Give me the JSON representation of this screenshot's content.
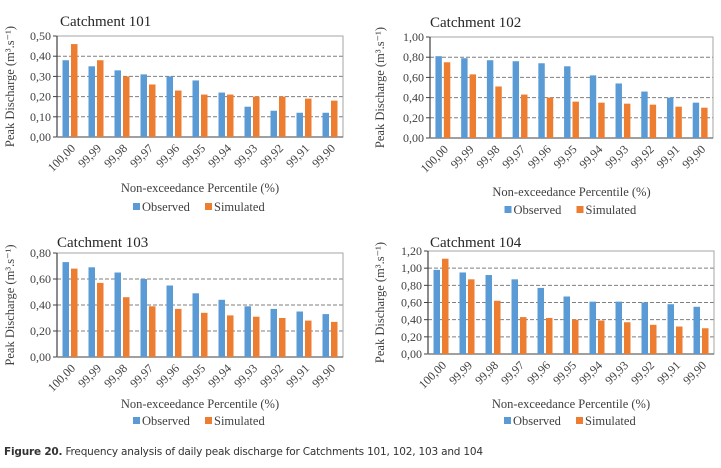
{
  "caption": {
    "label": "Figure 20.",
    "text": " Frequency analysis of daily peak discharge for Catchments 101, 102, 103 and 104"
  },
  "colors": {
    "observed": "#5B9BD5",
    "simulated": "#ED7D31",
    "grid": "#7f7f7f",
    "axis": "#808080"
  },
  "chart_data": [
    {
      "type": "bar",
      "title": "Catchment 101",
      "xlabel": "Non-exceedance Percentile (%)",
      "ylabel": "Peak Discharge (m³.s⁻¹)",
      "ylim": [
        0,
        0.5
      ],
      "yticks": [
        "0,00",
        "0,10",
        "0,20",
        "0,30",
        "0,40",
        "0,50"
      ],
      "grid": true,
      "legend": "bottom",
      "categories": [
        "100,00",
        "99,99",
        "99,98",
        "99,97",
        "99,96",
        "99,95",
        "99,94",
        "99,93",
        "99,92",
        "99,91",
        "99,90"
      ],
      "series": [
        {
          "name": "Observed",
          "values": [
            0.38,
            0.35,
            0.33,
            0.31,
            0.3,
            0.28,
            0.22,
            0.15,
            0.13,
            0.12,
            0.12
          ]
        },
        {
          "name": "Simulated",
          "values": [
            0.46,
            0.38,
            0.3,
            0.26,
            0.23,
            0.21,
            0.21,
            0.2,
            0.2,
            0.19,
            0.18
          ]
        }
      ]
    },
    {
      "type": "bar",
      "title": "Catchment 102",
      "xlabel": "Non-exceedance Percentile (%)",
      "ylabel": "Peak Discharge (m³.s⁻¹)",
      "ylim": [
        0,
        1.0
      ],
      "yticks": [
        "0,00",
        "0,20",
        "0,40",
        "0,60",
        "0,80",
        "1,00"
      ],
      "grid": true,
      "legend": "bottom",
      "categories": [
        "100,00",
        "99,99",
        "99,98",
        "99,97",
        "99,96",
        "99,95",
        "99,94",
        "99,93",
        "99,92",
        "99,91",
        "99,90"
      ],
      "series": [
        {
          "name": "Observed",
          "values": [
            0.81,
            0.79,
            0.77,
            0.76,
            0.74,
            0.71,
            0.62,
            0.54,
            0.46,
            0.4,
            0.35
          ]
        },
        {
          "name": "Simulated",
          "values": [
            0.75,
            0.63,
            0.51,
            0.43,
            0.4,
            0.36,
            0.35,
            0.34,
            0.33,
            0.31,
            0.3
          ]
        }
      ]
    },
    {
      "type": "bar",
      "title": "Catchment 103",
      "xlabel": "Non-exceedance Percentile (%)",
      "ylabel": "Peak Discharge (m³.s⁻¹)",
      "ylim": [
        0,
        0.8
      ],
      "yticks": [
        "0,00",
        "0,20",
        "0,40",
        "0,60",
        "0,80"
      ],
      "grid": true,
      "legend": "bottom",
      "categories": [
        "100,00",
        "99,99",
        "99,98",
        "99,97",
        "99,96",
        "99,95",
        "99,94",
        "99,93",
        "99,92",
        "99,91",
        "99,90"
      ],
      "series": [
        {
          "name": "Observed",
          "values": [
            0.73,
            0.69,
            0.65,
            0.6,
            0.55,
            0.49,
            0.44,
            0.39,
            0.37,
            0.35,
            0.33
          ]
        },
        {
          "name": "Simulated",
          "values": [
            0.68,
            0.57,
            0.46,
            0.39,
            0.37,
            0.34,
            0.32,
            0.31,
            0.3,
            0.28,
            0.27
          ]
        }
      ]
    },
    {
      "type": "bar",
      "title": "Catchment 104",
      "xlabel": "Non-exceedance Percentile (%)",
      "ylabel": "Peak Discharge (m³.s⁻¹)",
      "ylim": [
        0,
        1.2
      ],
      "yticks": [
        "0,00",
        "0,20",
        "0,40",
        "0,60",
        "0,80",
        "1,00",
        "1,20"
      ],
      "grid": true,
      "legend": "bottom",
      "categories": [
        "100,00",
        "99,99",
        "99,98",
        "99,97",
        "99,96",
        "99,95",
        "99,94",
        "99,93",
        "99,92",
        "99,91",
        "99,90"
      ],
      "series": [
        {
          "name": "Observed",
          "values": [
            0.98,
            0.95,
            0.92,
            0.87,
            0.77,
            0.67,
            0.61,
            0.61,
            0.6,
            0.58,
            0.55
          ]
        },
        {
          "name": "Simulated",
          "values": [
            1.11,
            0.87,
            0.62,
            0.43,
            0.42,
            0.4,
            0.39,
            0.37,
            0.34,
            0.32,
            0.3
          ]
        }
      ]
    }
  ]
}
